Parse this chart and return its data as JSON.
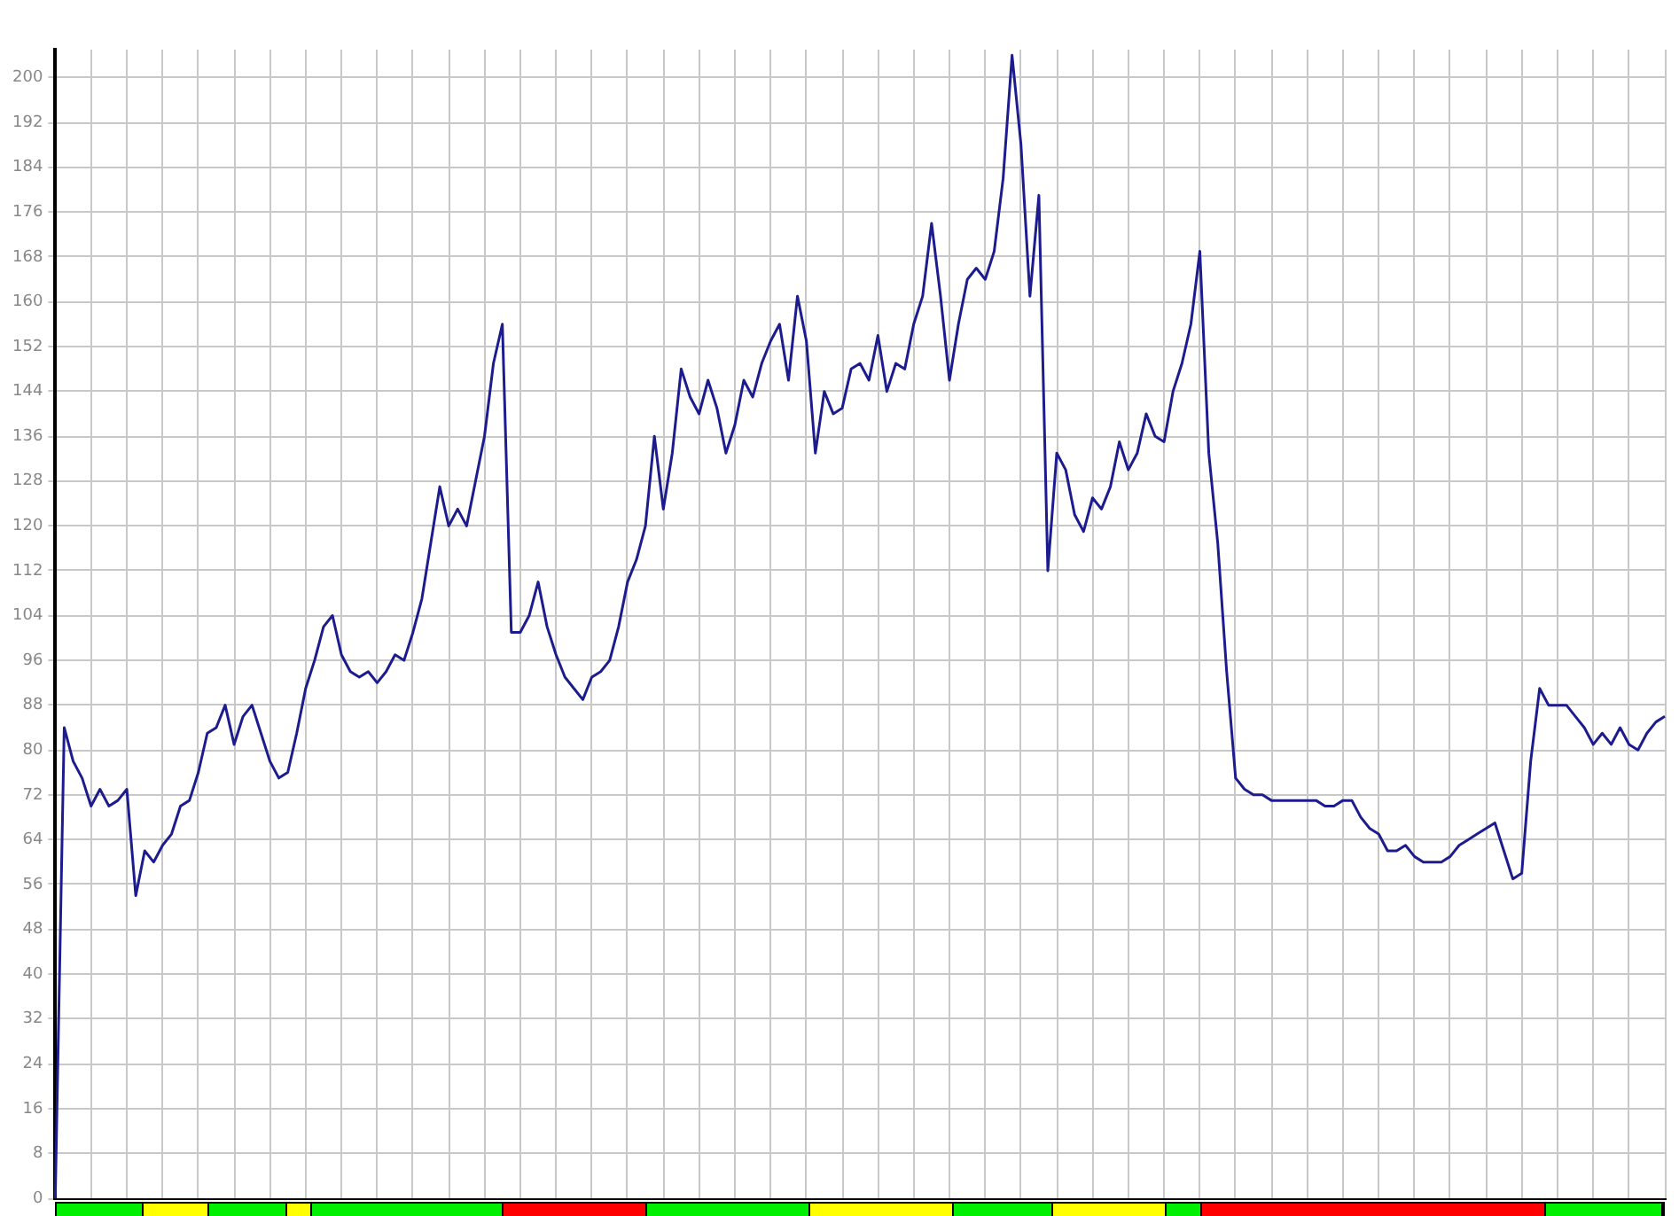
{
  "chart_data": {
    "type": "line",
    "categories": [
      null,
      null,
      null,
      null,
      null,
      null,
      null,
      null,
      null,
      null,
      null,
      null,
      null,
      null,
      null,
      null,
      null,
      null,
      null,
      null,
      null,
      null,
      null,
      null,
      null,
      null,
      null,
      null,
      null,
      null,
      null,
      null,
      null,
      null,
      null,
      null,
      null,
      null,
      null,
      null,
      null,
      null,
      null,
      null,
      null,
      null,
      null,
      null,
      null,
      null,
      null,
      null,
      null,
      null,
      null,
      null,
      null,
      null,
      null,
      null,
      null,
      null,
      null,
      null,
      null,
      null,
      null,
      null,
      null,
      null,
      null,
      null,
      null,
      null,
      null,
      null,
      null,
      null,
      null,
      null,
      null,
      null,
      null,
      null,
      null,
      null,
      null,
      null,
      null,
      null,
      null,
      null,
      null,
      null,
      null,
      null,
      null,
      null,
      null,
      null,
      null,
      null,
      null,
      null,
      null,
      null,
      null,
      null,
      null,
      null,
      null,
      null,
      null,
      null,
      null,
      null,
      null,
      null,
      null,
      null,
      null,
      null,
      null,
      null,
      null,
      null,
      null,
      null,
      null,
      null,
      null,
      null,
      null,
      null,
      null,
      null,
      null,
      null,
      null,
      null,
      null,
      null,
      null,
      null,
      null,
      null,
      null,
      null,
      null,
      null,
      null,
      null,
      null,
      null,
      null,
      null,
      null,
      null,
      null,
      null,
      null,
      null,
      null,
      null,
      null,
      null,
      null,
      null,
      null,
      null,
      null,
      null,
      null,
      null,
      null,
      null,
      null,
      null,
      null,
      null,
      null
    ],
    "series": [
      {
        "color": "#1c1c8e",
        "values": [
          0,
          84,
          78,
          75,
          70,
          73,
          70,
          71,
          73,
          54,
          62,
          60,
          63,
          65,
          70,
          71,
          76,
          83,
          84,
          88,
          81,
          86,
          88,
          83,
          78,
          75,
          76,
          83,
          91,
          96,
          102,
          104,
          97,
          94,
          93,
          94,
          92,
          94,
          97,
          96,
          101,
          107,
          117,
          127,
          120,
          123,
          120,
          128,
          136,
          149,
          156,
          101,
          101,
          104,
          110,
          102,
          97,
          93,
          91,
          89,
          93,
          94,
          96,
          102,
          110,
          114,
          120,
          136,
          123,
          133,
          148,
          143,
          140,
          146,
          141,
          133,
          138,
          146,
          143,
          149,
          153,
          156,
          146,
          161,
          153,
          133,
          144,
          140,
          141,
          148,
          149,
          146,
          154,
          144,
          149,
          148,
          156,
          161,
          174,
          161,
          146,
          156,
          164,
          166,
          164,
          169,
          182,
          204,
          188,
          161,
          179,
          112,
          133,
          130,
          122,
          119,
          125,
          123,
          127,
          135,
          130,
          133,
          140,
          136,
          135,
          144,
          149,
          156,
          169,
          133,
          117,
          94,
          75,
          73,
          72,
          72,
          71,
          71,
          71,
          71,
          71,
          71,
          70,
          70,
          71,
          71,
          68,
          66,
          65,
          62,
          62,
          63,
          61,
          60,
          60,
          60,
          61,
          63,
          64,
          65,
          66,
          67,
          62,
          57,
          58,
          78,
          91,
          88,
          88,
          88,
          86,
          84,
          81,
          83,
          81,
          84,
          81,
          80,
          83,
          85,
          86
        ]
      }
    ],
    "ylim": [
      0,
      205
    ],
    "yticks": [
      0,
      8,
      16,
      24,
      32,
      40,
      48,
      56,
      64,
      72,
      80,
      88,
      96,
      104,
      112,
      120,
      128,
      136,
      144,
      152,
      160,
      168,
      176,
      184,
      192,
      200
    ],
    "tick_labels": "y",
    "grid": true,
    "legend": false,
    "marker": "none",
    "line_style": "solid"
  }
}
